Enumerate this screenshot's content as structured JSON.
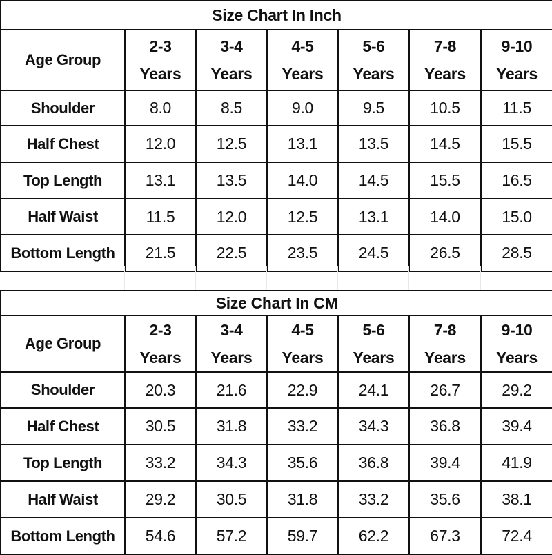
{
  "inch": {
    "title": "Size Chart In Inch",
    "age_label": "Age Group",
    "ages": [
      {
        "range": "2-3",
        "unit": "Years"
      },
      {
        "range": "3-4",
        "unit": "Years"
      },
      {
        "range": "4-5",
        "unit": "Years"
      },
      {
        "range": "5-6",
        "unit": "Years"
      },
      {
        "range": "7-8",
        "unit": "Years"
      },
      {
        "range": "9-10",
        "unit": "Years"
      }
    ],
    "rows": [
      {
        "label": "Shoulder",
        "values": [
          "8.0",
          "8.5",
          "9.0",
          "9.5",
          "10.5",
          "11.5"
        ]
      },
      {
        "label": "Half Chest",
        "values": [
          "12.0",
          "12.5",
          "13.1",
          "13.5",
          "14.5",
          "15.5"
        ]
      },
      {
        "label": "Top Length",
        "values": [
          "13.1",
          "13.5",
          "14.0",
          "14.5",
          "15.5",
          "16.5"
        ]
      },
      {
        "label": "Half Waist",
        "values": [
          "11.5",
          "12.0",
          "12.5",
          "13.1",
          "14.0",
          "15.0"
        ]
      },
      {
        "label": "Bottom Length",
        "values": [
          "21.5",
          "22.5",
          "23.5",
          "24.5",
          "26.5",
          "28.5"
        ]
      }
    ]
  },
  "cm": {
    "title": "Size Chart In CM",
    "age_label": "Age Group",
    "ages": [
      {
        "range": "2-3",
        "unit": "Years"
      },
      {
        "range": "3-4",
        "unit": "Years"
      },
      {
        "range": "4-5",
        "unit": "Years"
      },
      {
        "range": "5-6",
        "unit": "Years"
      },
      {
        "range": "7-8",
        "unit": "Years"
      },
      {
        "range": "9-10",
        "unit": "Years"
      }
    ],
    "rows": [
      {
        "label": "Shoulder",
        "values": [
          "20.3",
          "21.6",
          "22.9",
          "24.1",
          "26.7",
          "29.2"
        ]
      },
      {
        "label": "Half Chest",
        "values": [
          "30.5",
          "31.8",
          "33.2",
          "34.3",
          "36.8",
          "39.4"
        ]
      },
      {
        "label": "Top Length",
        "values": [
          "33.2",
          "34.3",
          "35.6",
          "36.8",
          "39.4",
          "41.9"
        ]
      },
      {
        "label": "Half Waist",
        "values": [
          "29.2",
          "30.5",
          "31.8",
          "33.2",
          "35.6",
          "38.1"
        ]
      },
      {
        "label": "Bottom Length",
        "values": [
          "54.6",
          "57.2",
          "59.7",
          "62.2",
          "67.3",
          "72.4"
        ]
      }
    ]
  }
}
